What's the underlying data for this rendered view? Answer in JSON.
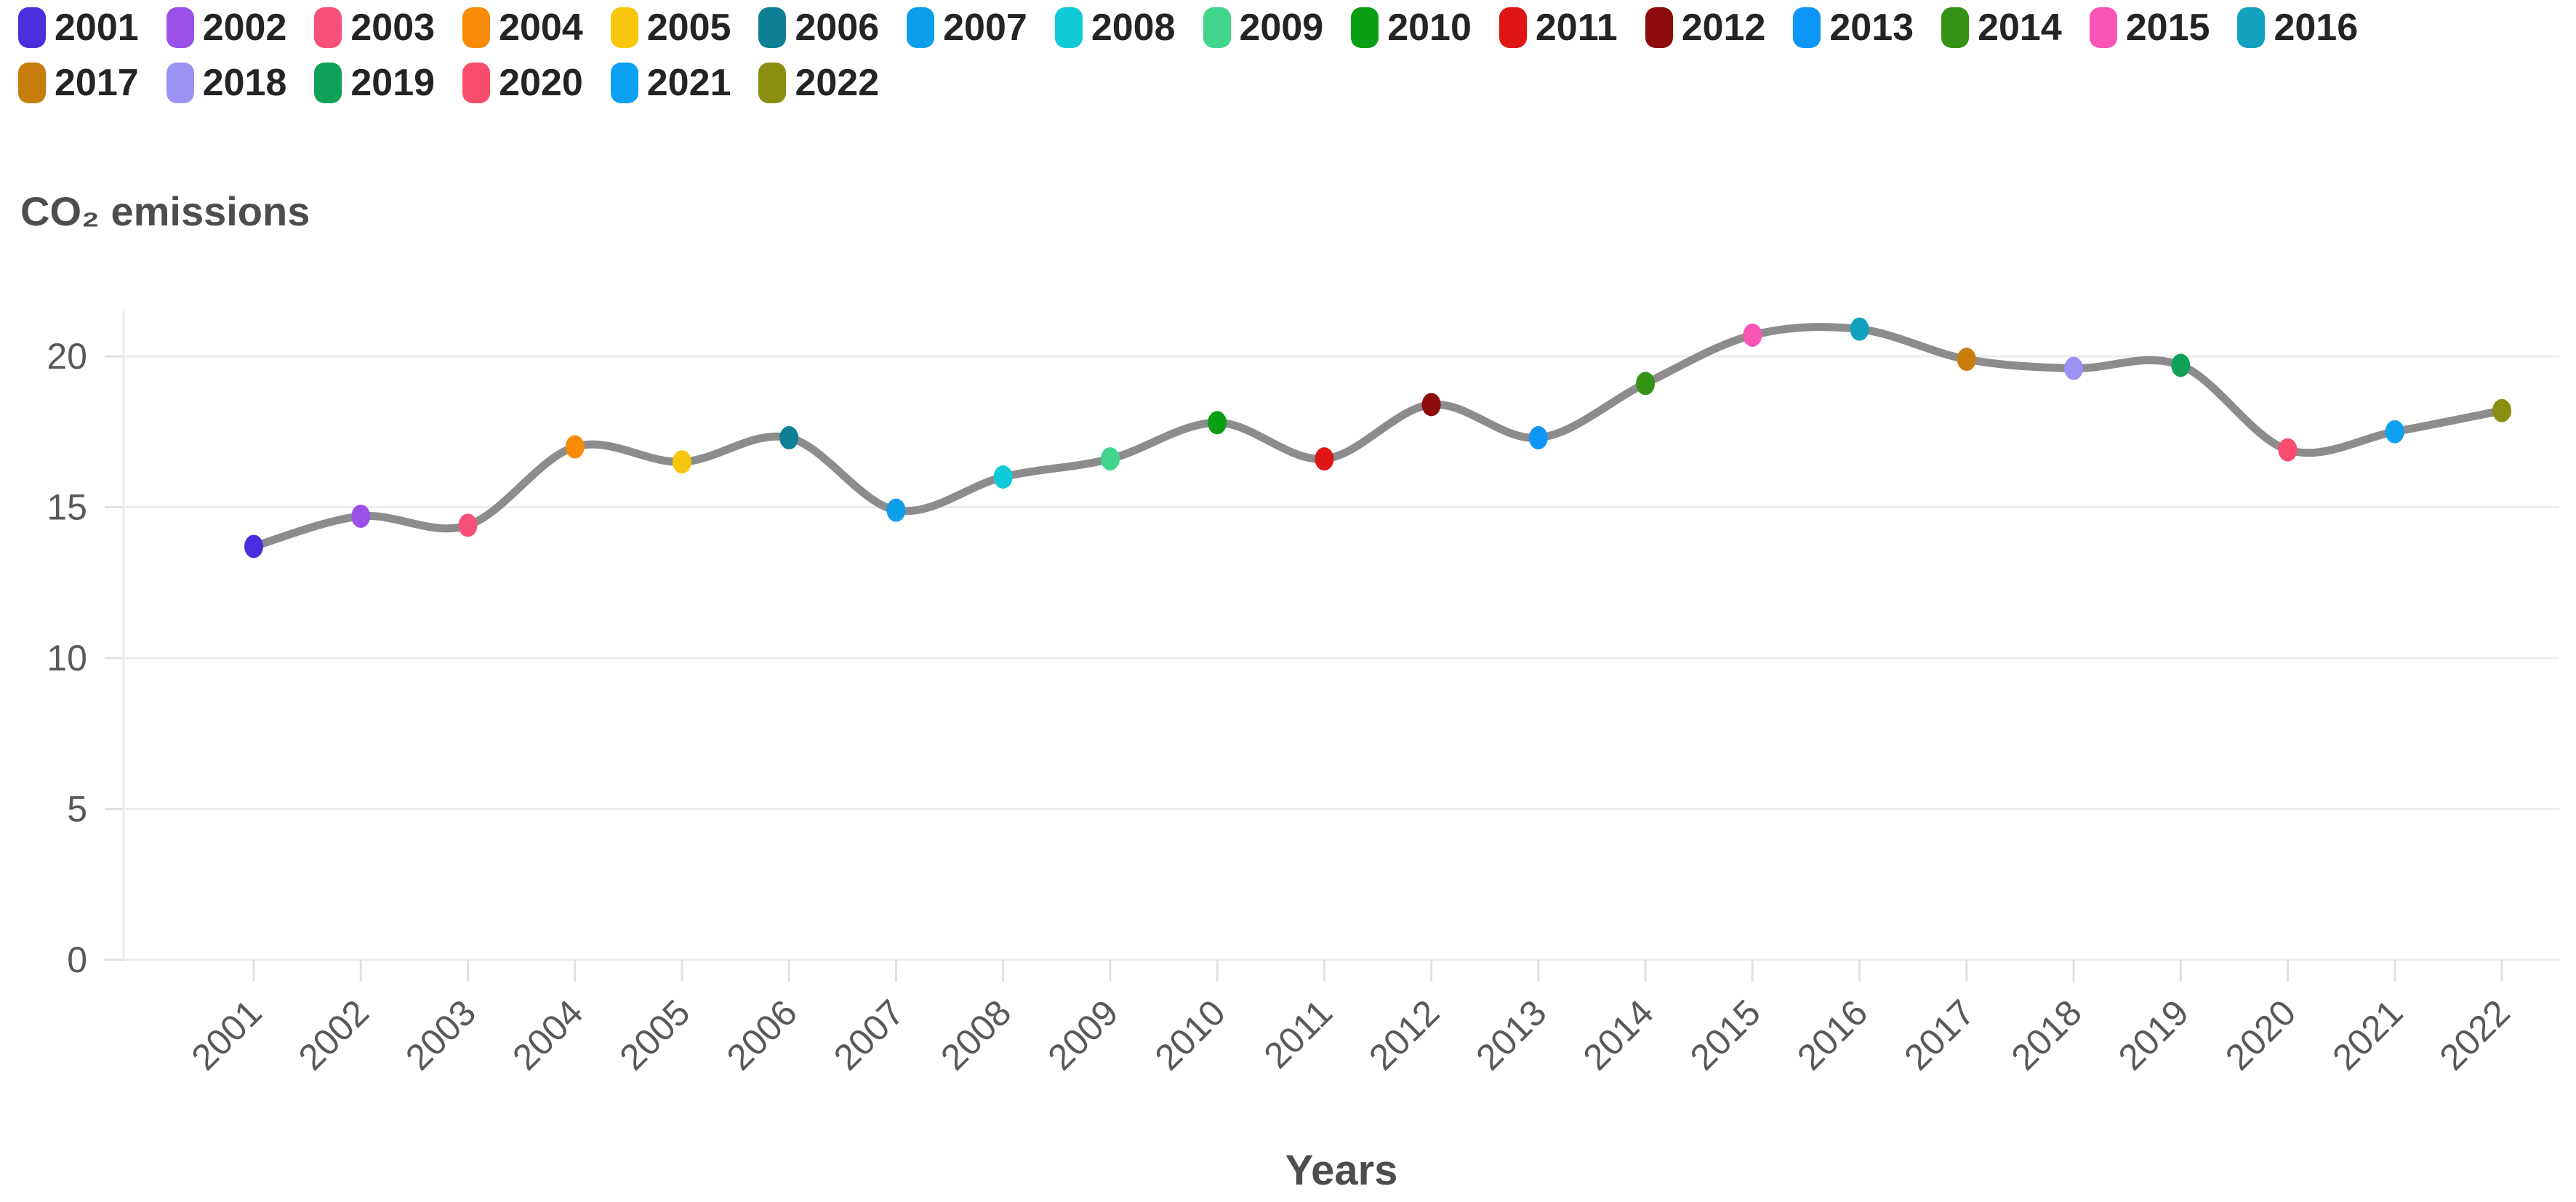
{
  "header": {
    "title": "CO₂ emissions"
  },
  "chart_data": {
    "type": "line",
    "title": "CO₂ emissions",
    "xlabel": "Years",
    "ylabel": "",
    "categories": [
      "2001",
      "2002",
      "2003",
      "2004",
      "2005",
      "2006",
      "2007",
      "2008",
      "2009",
      "2010",
      "2011",
      "2012",
      "2013",
      "2014",
      "2015",
      "2016",
      "2017",
      "2018",
      "2019",
      "2020",
      "2021",
      "2022"
    ],
    "values": [
      13.7,
      14.7,
      14.4,
      17.0,
      16.5,
      17.3,
      14.9,
      16.0,
      16.6,
      17.8,
      16.6,
      18.4,
      17.3,
      19.1,
      20.7,
      20.9,
      19.9,
      19.6,
      19.7,
      16.9,
      17.5,
      18.2
    ],
    "point_colors": [
      "#4B2EDE",
      "#9B51E8",
      "#F85179",
      "#F78A06",
      "#F9C60E",
      "#0E8095",
      "#0D9EE9",
      "#10CAD8",
      "#41D68C",
      "#0A9E14",
      "#E01616",
      "#8D0B0B",
      "#0E96F6",
      "#349314",
      "#FA54B5",
      "#10A2BE",
      "#C77D0C",
      "#9C92F4",
      "#10A159",
      "#FA4C6D",
      "#0DA1F2",
      "#8B8E11"
    ],
    "legend_entries": [
      "2001",
      "2002",
      "2003",
      "2004",
      "2005",
      "2006",
      "2007",
      "2008",
      "2009",
      "2010",
      "2011",
      "2012",
      "2013",
      "2014",
      "2015",
      "2016",
      "2017",
      "2018",
      "2019",
      "2020",
      "2021",
      "2022"
    ],
    "legend_position": "top",
    "line_color": "#8C8C8C",
    "smooth": true,
    "grid": true,
    "yticks": [
      0,
      5,
      10,
      15,
      20
    ],
    "ylim": [
      0,
      21.6
    ]
  }
}
